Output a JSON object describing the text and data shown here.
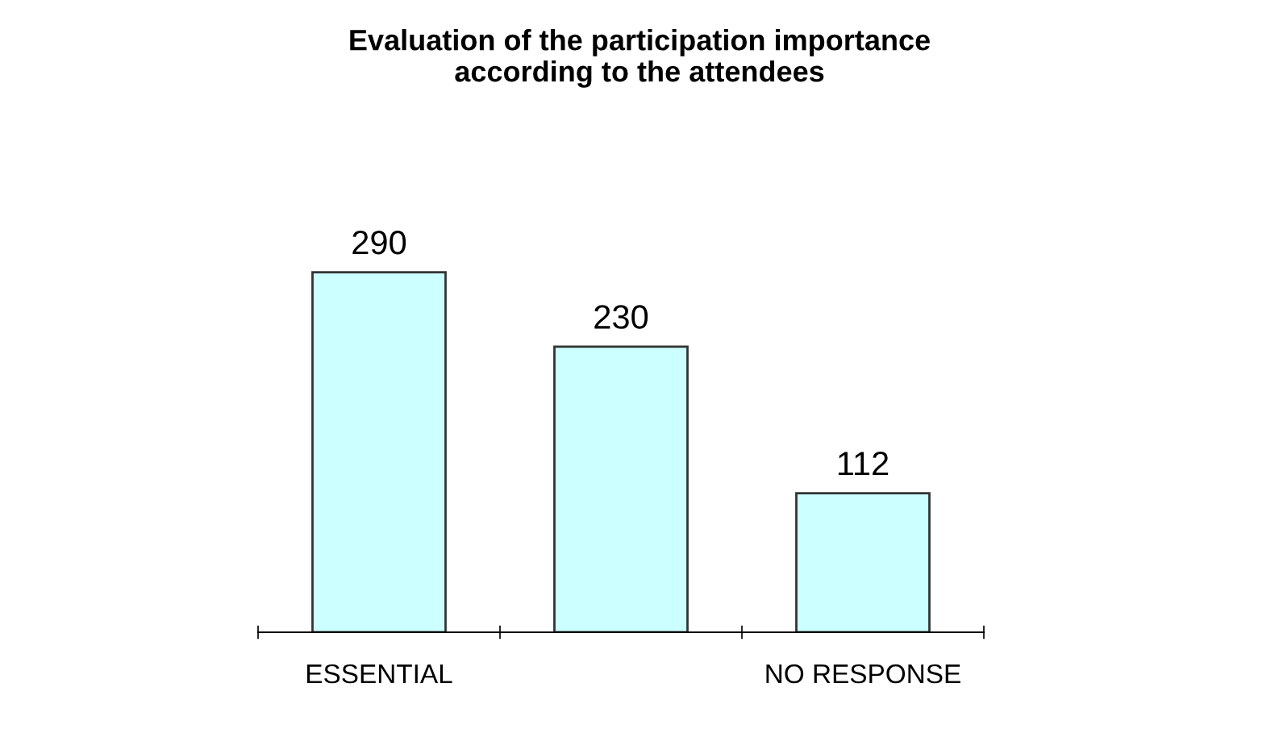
{
  "chart_data": {
    "type": "bar",
    "title": "Evaluation of the participation importance\naccording to the attendees",
    "categories": [
      "ESSENTIAL",
      null,
      "NO RESPONSE"
    ],
    "values": [
      290,
      230,
      112
    ],
    "color": "#ccffff",
    "data_labels": true,
    "grid": false,
    "legend": false
  }
}
